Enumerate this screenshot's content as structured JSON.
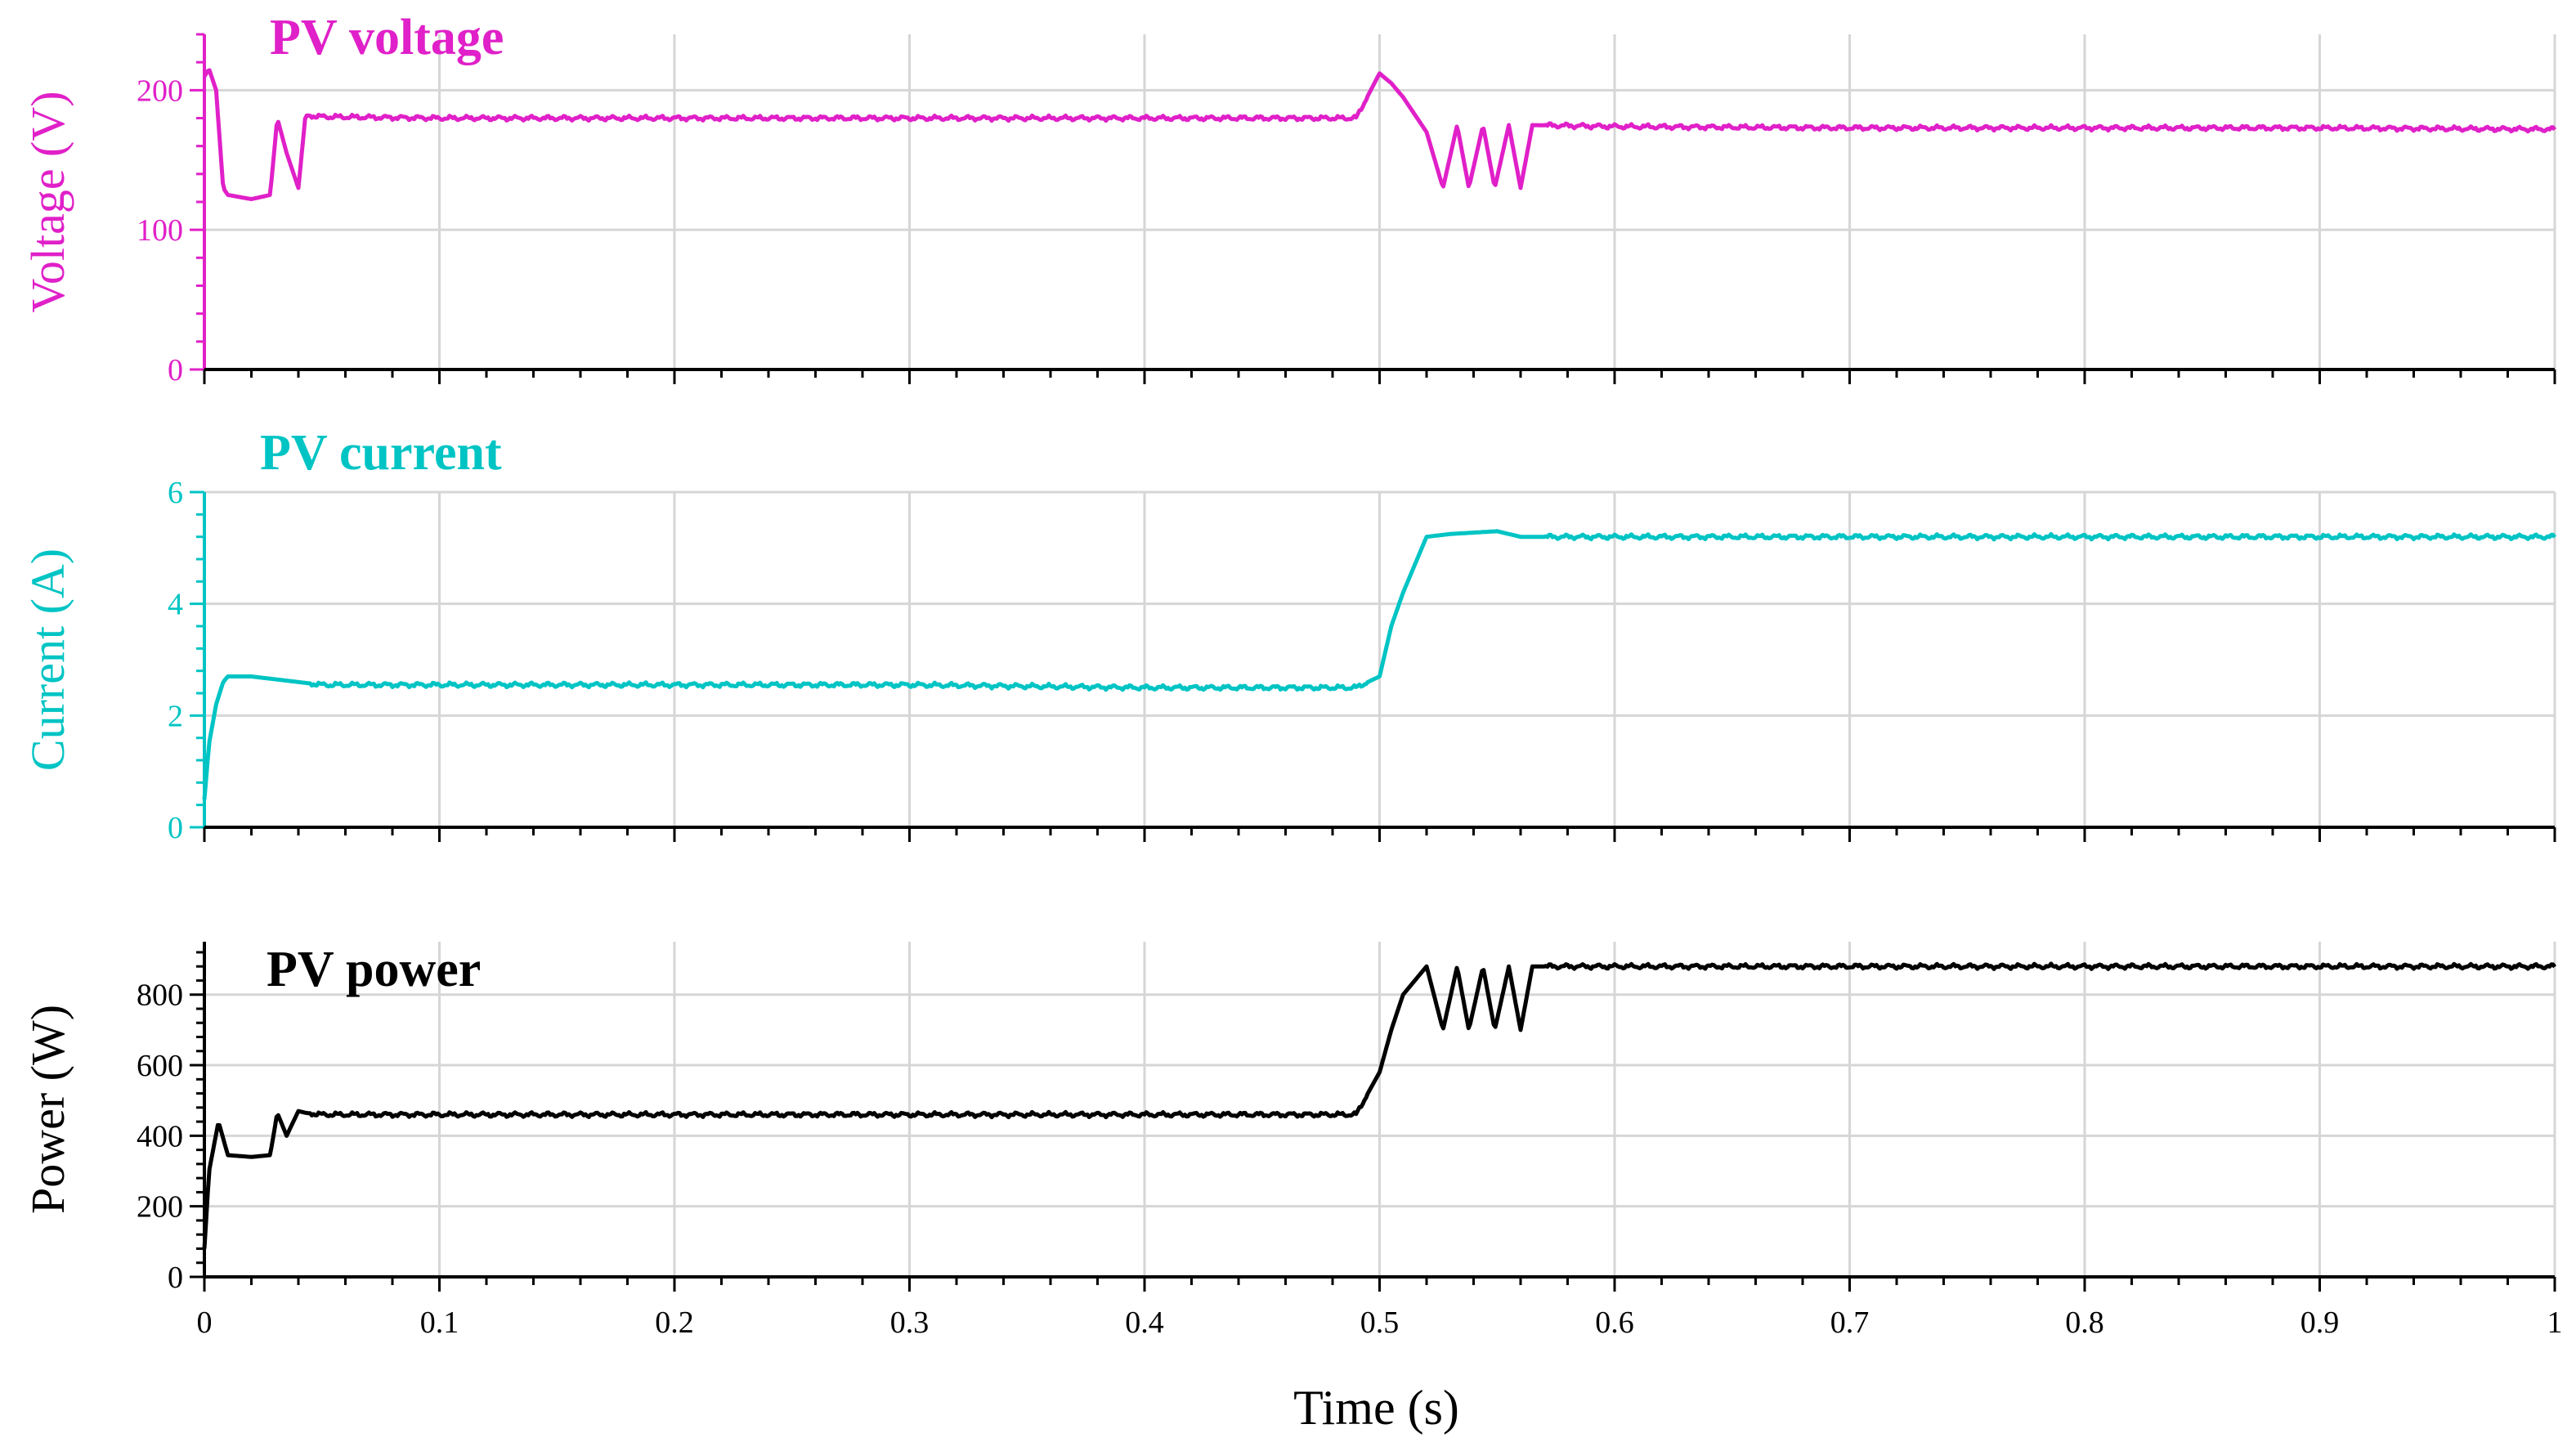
{
  "chart_data": [
    {
      "type": "line",
      "title": "PV voltage",
      "xlabel": "",
      "ylabel": "Voltage (V)",
      "xlim": [
        0,
        1
      ],
      "ylim": [
        0,
        240
      ],
      "yticks": [
        0,
        100,
        200
      ],
      "ytick_labels": [
        "0",
        "100",
        "200"
      ],
      "grid": true,
      "color": "#e020c8",
      "series": [
        {
          "x": [
            0,
            0.002,
            0.005,
            0.008,
            0.01,
            0.02,
            0.028,
            0.031,
            0.035,
            0.04,
            0.043,
            0.05,
            0.1,
            0.2,
            0.3,
            0.4,
            0.45,
            0.49,
            0.5,
            0.505,
            0.51,
            0.52,
            0.527,
            0.533,
            0.538,
            0.544,
            0.549,
            0.555,
            0.56,
            0.565,
            0.6,
            0.7,
            0.8,
            0.9,
            1.0
          ],
          "y": [
            210,
            215,
            200,
            130,
            125,
            122,
            125,
            180,
            155,
            130,
            182,
            181,
            180,
            180,
            180,
            180,
            180,
            180,
            212,
            205,
            195,
            170,
            130,
            175,
            130,
            175,
            130,
            175,
            130,
            175,
            174,
            173,
            173,
            173,
            172
          ]
        }
      ]
    },
    {
      "type": "line",
      "title": "PV current",
      "xlabel": "",
      "ylabel": "Current (A)",
      "xlim": [
        0,
        1
      ],
      "ylim": [
        0,
        6
      ],
      "yticks": [
        0,
        2,
        4,
        6
      ],
      "ytick_labels": [
        "0",
        "2",
        "4",
        "6"
      ],
      "grid": true,
      "color": "#00c4c4",
      "series": [
        {
          "x": [
            0,
            0.002,
            0.005,
            0.008,
            0.01,
            0.02,
            0.05,
            0.1,
            0.2,
            0.3,
            0.4,
            0.49,
            0.5,
            0.505,
            0.51,
            0.515,
            0.52,
            0.53,
            0.55,
            0.56,
            0.6,
            0.7,
            0.8,
            0.9,
            1.0
          ],
          "y": [
            0.5,
            1.5,
            2.2,
            2.6,
            2.7,
            2.7,
            2.55,
            2.55,
            2.55,
            2.55,
            2.5,
            2.5,
            2.7,
            3.6,
            4.2,
            4.7,
            5.2,
            5.25,
            5.3,
            5.2,
            5.2,
            5.2,
            5.2,
            5.2,
            5.2
          ]
        }
      ]
    },
    {
      "type": "line",
      "title": "PV power",
      "xlabel": "Time (s)",
      "ylabel": "Power (W)",
      "xlim": [
        0,
        1
      ],
      "ylim": [
        0,
        950
      ],
      "yticks": [
        0,
        200,
        400,
        600,
        800
      ],
      "ytick_labels": [
        "0",
        "200",
        "400",
        "600",
        "800"
      ],
      "xticks": [
        0,
        0.1,
        0.2,
        0.3,
        0.4,
        0.5,
        0.6,
        0.7,
        0.8,
        0.9,
        1
      ],
      "xtick_labels": [
        "0",
        "0.1",
        "0.2",
        "0.3",
        "0.4",
        "0.5",
        "0.6",
        "0.7",
        "0.8",
        "0.9",
        "1"
      ],
      "grid": true,
      "color": "#000000",
      "series": [
        {
          "x": [
            0,
            0.002,
            0.006,
            0.01,
            0.02,
            0.028,
            0.031,
            0.035,
            0.04,
            0.043,
            0.05,
            0.1,
            0.2,
            0.3,
            0.4,
            0.49,
            0.5,
            0.505,
            0.51,
            0.52,
            0.527,
            0.533,
            0.538,
            0.544,
            0.549,
            0.555,
            0.56,
            0.565,
            0.6,
            0.7,
            0.8,
            0.9,
            1.0
          ],
          "y": [
            80,
            300,
            440,
            345,
            340,
            345,
            465,
            400,
            470,
            465,
            460,
            460,
            460,
            460,
            460,
            460,
            580,
            700,
            800,
            880,
            700,
            880,
            700,
            880,
            700,
            880,
            700,
            880,
            880,
            880,
            880,
            880,
            880
          ]
        }
      ]
    }
  ]
}
